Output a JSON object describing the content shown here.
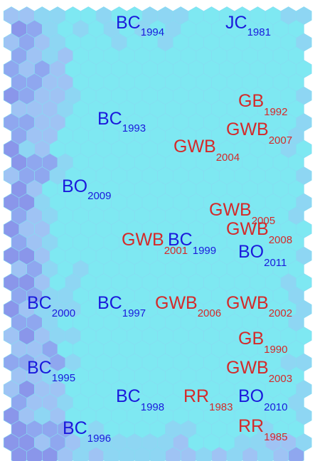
{
  "colors": {
    "background_cell": "#7ee8f2",
    "shade_light": "#8ed6f3",
    "shade_mid": "#9fc3f4",
    "shade_dark": "#8fa7ef",
    "shade_darker": "#8a96ea",
    "democrat": "#1a1adc",
    "republican": "#d42a2a"
  },
  "labels": [
    {
      "name": "BC",
      "year": "1994",
      "party": "democrat"
    },
    {
      "name": "JC",
      "year": "1981",
      "party": "democrat"
    },
    {
      "name": "GB",
      "year": "1992",
      "party": "republican"
    },
    {
      "name": "BC",
      "year": "1993",
      "party": "democrat"
    },
    {
      "name": "GWB",
      "year": "2007",
      "party": "republican"
    },
    {
      "name": "GWB",
      "year": "2004",
      "party": "republican"
    },
    {
      "name": "BO",
      "year": "2009",
      "party": "democrat"
    },
    {
      "name": "GWB",
      "year": "2005",
      "party": "republican"
    },
    {
      "name": "GWB",
      "year": "2008",
      "party": "republican"
    },
    {
      "name": "GWB",
      "year": "2001",
      "party": "republican"
    },
    {
      "name": "BC",
      "year": "1999",
      "party": "democrat"
    },
    {
      "name": "BO",
      "year": "2011",
      "party": "democrat"
    },
    {
      "name": "BC",
      "year": "2000",
      "party": "democrat"
    },
    {
      "name": "BC",
      "year": "1997",
      "party": "democrat"
    },
    {
      "name": "GWB",
      "year": "2006",
      "party": "republican"
    },
    {
      "name": "GWB",
      "year": "2002",
      "party": "republican"
    },
    {
      "name": "GB",
      "year": "1990",
      "party": "republican"
    },
    {
      "name": "BC",
      "year": "1995",
      "party": "democrat"
    },
    {
      "name": "GWB",
      "year": "2003",
      "party": "republican"
    },
    {
      "name": "BC",
      "year": "1998",
      "party": "democrat"
    },
    {
      "name": "RR",
      "year": "1983",
      "party": "republican"
    },
    {
      "name": "BO",
      "year": "2010",
      "party": "democrat"
    },
    {
      "name": "RR",
      "year": "1985",
      "party": "republican"
    },
    {
      "name": "BC",
      "year": "1996",
      "party": "democrat"
    }
  ]
}
